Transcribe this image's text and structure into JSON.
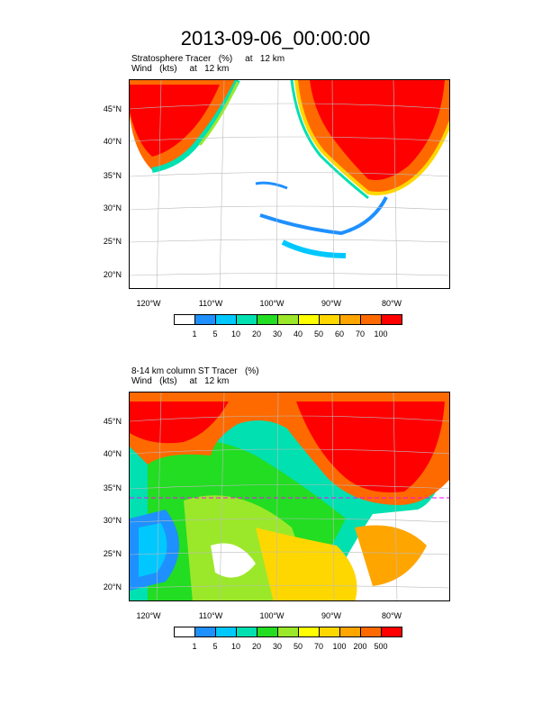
{
  "title": "2013-09-06_00:00:00",
  "panels": [
    {
      "title_line1": "Stratosphere Tracer   (%)     at   12 km",
      "title_line2": "Wind   (kts)     at   12 km",
      "colorbar_ticks": [
        "1",
        "5",
        "10",
        "20",
        "30",
        "40",
        "50",
        "60",
        "70",
        "100"
      ],
      "colors": [
        "#ffffff",
        "#1e90ff",
        "#00c8ff",
        "#00e0b0",
        "#22dd22",
        "#9be82a",
        "#ffff00",
        "#ffd700",
        "#ffa500",
        "#ff6a00",
        "#ff0000"
      ]
    },
    {
      "title_line1": "8-14 km column ST Tracer   (%)",
      "title_line2": "Wind   (kts)     at   12 km",
      "colorbar_ticks": [
        "1",
        "5",
        "10",
        "20",
        "30",
        "50",
        "70",
        "100",
        "200",
        "500"
      ],
      "colors": [
        "#ffffff",
        "#1e90ff",
        "#00c8ff",
        "#00e0b0",
        "#22dd22",
        "#9be82a",
        "#ffff00",
        "#ffd700",
        "#ffa500",
        "#ff6a00",
        "#ff0000"
      ]
    }
  ],
  "lat_labels": [
    "45°N",
    "40°N",
    "35°N",
    "30°N",
    "25°N",
    "20°N"
  ],
  "lon_labels": [
    "120°W",
    "110°W",
    "100°W",
    "90°W",
    "80°W"
  ]
}
